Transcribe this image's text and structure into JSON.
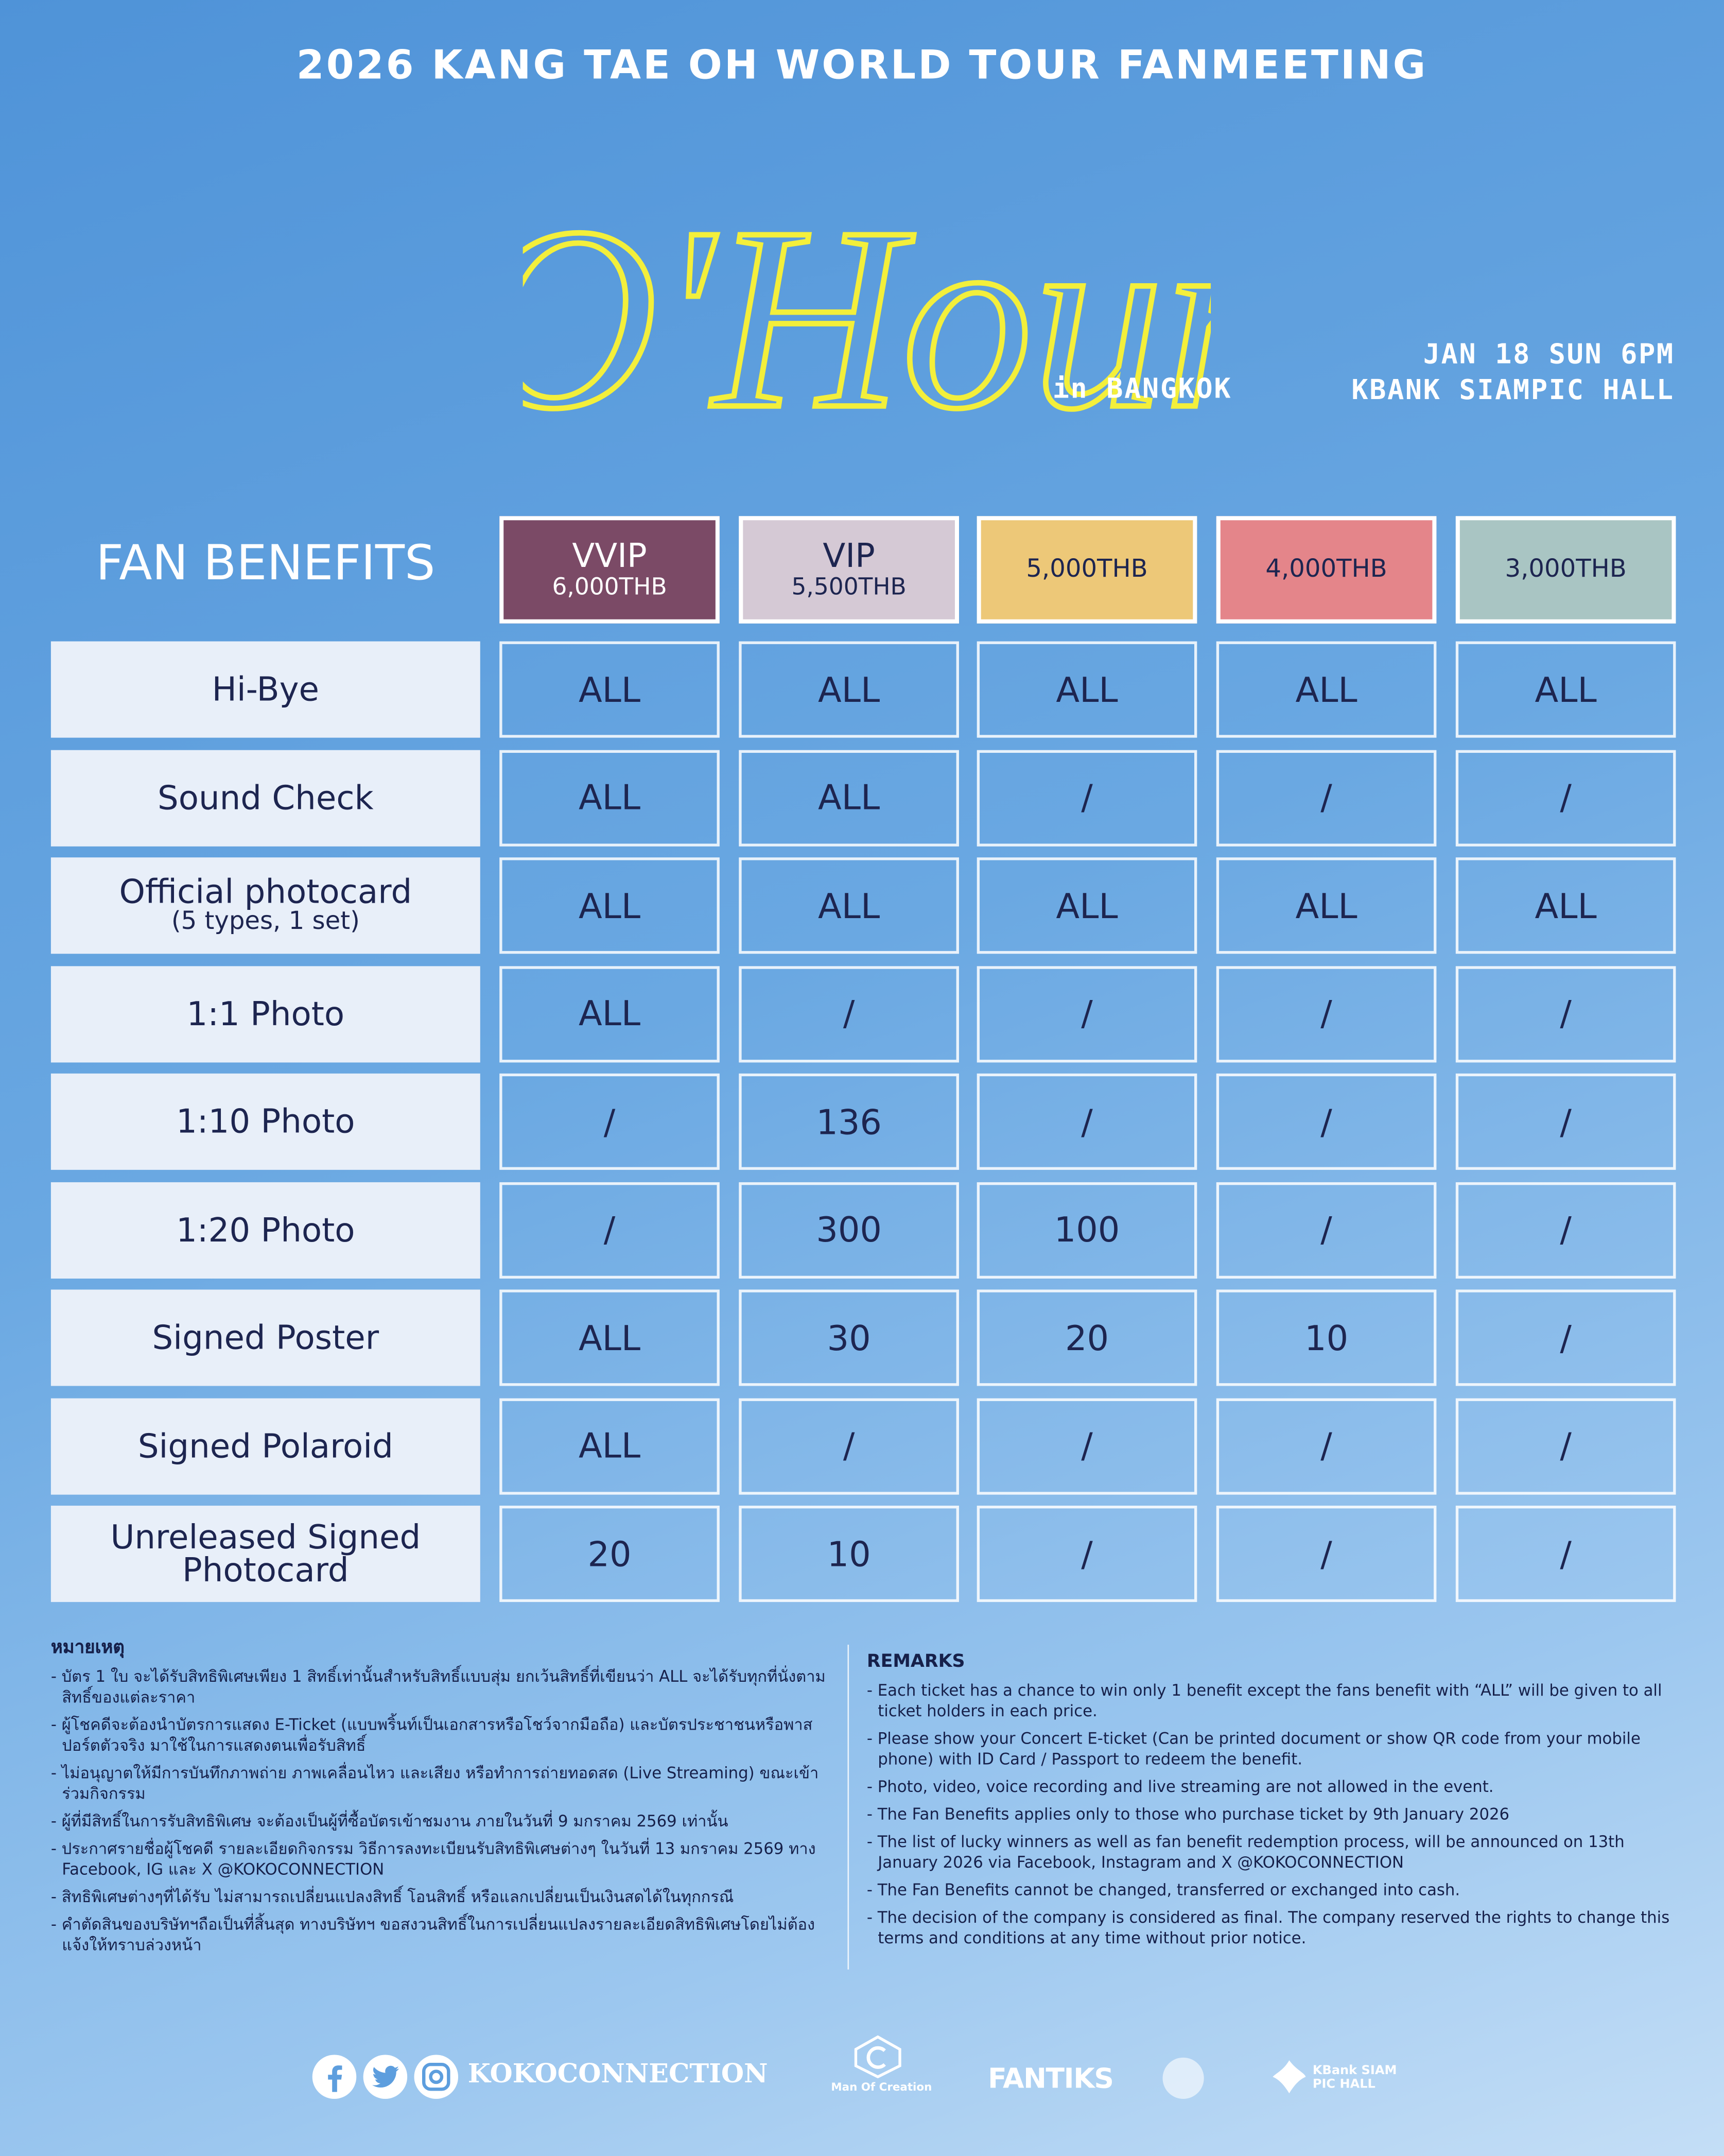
{
  "header": {
    "title": "2026 KANG TAE OH WORLD TOUR FANMEETING",
    "logo": "O'Hour",
    "city": "in BANGKOK",
    "date": "JAN 18 SUN 6PM",
    "venue": "KBANK SIAMPIC HALL"
  },
  "table": {
    "title": "FAN BENEFITS",
    "tiers": [
      {
        "name": "VVIP",
        "price": "6,000THB"
      },
      {
        "name": "VIP",
        "price": "5,500THB"
      },
      {
        "price": "5,000THB"
      },
      {
        "price": "4,000THB"
      },
      {
        "price": "3,000THB"
      }
    ],
    "rows": [
      {
        "label": "Hi-Bye",
        "cells": [
          "ALL",
          "ALL",
          "ALL",
          "ALL",
          "ALL"
        ]
      },
      {
        "label": "Sound Check",
        "cells": [
          "ALL",
          "ALL",
          "/",
          "/",
          "/"
        ]
      },
      {
        "label": "Official photocard",
        "note": "(5 types, 1 set)",
        "cells": [
          "ALL",
          "ALL",
          "ALL",
          "ALL",
          "ALL"
        ]
      },
      {
        "label": "1:1 Photo",
        "cells": [
          "ALL",
          "/",
          "/",
          "/",
          "/"
        ]
      },
      {
        "label": "1:10 Photo",
        "cells": [
          "/",
          136,
          "/",
          "/",
          "/"
        ]
      },
      {
        "label": "1:20 Photo",
        "cells": [
          "/",
          300,
          100,
          "/",
          "/"
        ]
      },
      {
        "label": "Signed Poster",
        "cells": [
          "ALL",
          30,
          20,
          10,
          "/"
        ]
      },
      {
        "label": "Signed Polaroid",
        "cells": [
          "ALL",
          "/",
          "/",
          "/",
          "/"
        ]
      },
      {
        "label": "Unreleased Signed Photocard",
        "cells": [
          20,
          10,
          "/",
          "/",
          "/"
        ]
      }
    ]
  },
  "remarks_th": {
    "title": "หมายเหตุ",
    "items": [
      "- บัตร 1 ใบ จะได้รับสิทธิพิเศษเพียง 1 สิทธิ์เท่านั้นสำหรับสิทธิ์แบบสุ่ม ยกเว้นสิทธิ์ที่เขียนว่า ALL จะได้รับทุกที่นั่งตามสิทธิ์ของแต่ละราคา",
      "- ผู้โชคดีจะต้องนำบัตรการแสดง E-Ticket (แบบพริ้นท์เป็นเอกสารหรือโชว์จากมือถือ) และบัตรประชาชนหรือพาสปอร์ตตัวจริง มาใช้ในการแสดงตนเพื่อรับสิทธิ์",
      "- ไม่อนุญาตให้มีการบันทึกภาพถ่าย ภาพเคลื่อนไหว และเสียง หรือทำการถ่ายทอดสด (Live Streaming) ขณะเข้าร่วมกิจกรรม",
      "- ผู้ที่มีสิทธิ์ในการรับสิทธิพิเศษ จะต้องเป็นผู้ที่ซื้อบัตรเข้าชมงาน ภายในวันที่ 9 มกราคม 2569 เท่านั้น",
      "- ประกาศรายชื่อผู้โชคดี รายละเอียดกิจกรรม วิธีการลงทะเบียนรับสิทธิพิเศษต่างๆ ในวันที่ 13 มกราคม 2569 ทาง Facebook, IG และ X @KOKOCONNECTION",
      "- สิทธิพิเศษต่างๆที่ได้รับ ไม่สามารถเปลี่ยนแปลงสิทธิ์ โอนสิทธิ์ หรือแลกเปลี่ยนเป็นเงินสดได้ในทุกกรณี",
      "- คำตัดสินของบริษัทฯถือเป็นที่สิ้นสุด ทางบริษัทฯ ขอสงวนสิทธิ์ในการเปลี่ยนแปลงรายละเอียดสิทธิพิเศษโดยไม่ต้องแจ้งให้ทราบล่วงหน้า"
    ]
  },
  "remarks_en": {
    "title": "REMARKS",
    "items": [
      "- Each ticket has a chance to win only 1 benefit except the fans benefit with “ALL” will be given to all ticket holders in each price.",
      "- Please show your Concert E-ticket (Can be printed document or show QR code from your mobile phone) with ID Card / Passport to redeem the benefit.",
      "- Photo, video, voice recording and live streaming are not allowed in the event.",
      "- The Fan Benefits applies only to those who purchase ticket by 9th January 2026",
      "- The list of lucky winners as well as fan benefit redemption process, will be announced on 13th January 2026 via Facebook, Instagram and X @KOKOCONNECTION",
      "- The Fan Benefits cannot be changed, transferred or exchanged into cash.",
      "- The decision of the company is considered as final. The company reserved the rights to change this terms and conditions at any time without prior notice."
    ]
  },
  "footer": {
    "handle": "KOKOCONNECTION",
    "partners": [
      "Man Of Creation",
      "FANTIKS",
      "KBank SIAM PIC HALL"
    ]
  }
}
